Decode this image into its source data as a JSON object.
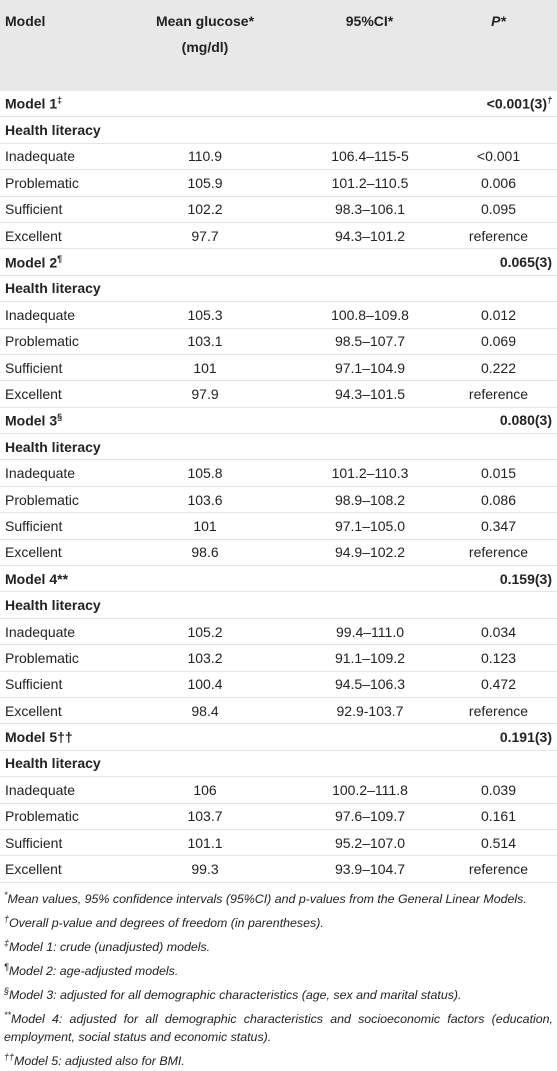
{
  "table": {
    "header": [
      "Model",
      "Mean glucose* (mg/dl)",
      "95%CI*",
      "P*"
    ],
    "models": [
      {
        "label": "Model 1",
        "sup": "‡",
        "p": "<0.001(3)",
        "p_sup": "†",
        "subheading": "Health literacy",
        "rows": [
          [
            "Inadequate",
            "110.9",
            "106.4–115-5",
            "<0.001"
          ],
          [
            "Problematic",
            "105.9",
            "101.2–110.5",
            "0.006"
          ],
          [
            "Sufficient",
            "102.2",
            "98.3–106.1",
            "0.095"
          ],
          [
            "Excellent",
            "97.7",
            "94.3–101.2",
            "reference"
          ]
        ]
      },
      {
        "label": "Model 2",
        "sup": "¶",
        "p": "0.065(3)",
        "subheading": "Health literacy",
        "rows": [
          [
            "Inadequate",
            "105.3",
            "100.8–109.8",
            "0.012"
          ],
          [
            "Problematic",
            "103.1",
            "98.5–107.7",
            "0.069"
          ],
          [
            "Sufficient",
            "101",
            "97.1–104.9",
            "0.222"
          ],
          [
            "Excellent",
            "97.9",
            "94.3–101.5",
            "reference"
          ]
        ]
      },
      {
        "label": "Model 3",
        "sup": "§",
        "p": "0.080(3)",
        "subheading": "Health literacy",
        "rows": [
          [
            "Inadequate",
            "105.8",
            "101.2–110.3",
            "0.015"
          ],
          [
            "Problematic",
            "103.6",
            "98.9–108.2",
            "0.086"
          ],
          [
            "Sufficient",
            "101",
            "97.1–105.0",
            "0.347"
          ],
          [
            "Excellent",
            "98.6",
            "94.9–102.2",
            "reference"
          ]
        ]
      },
      {
        "label": "Model 4**",
        "p": "0.159(3)",
        "subheading": "Health literacy",
        "rows": [
          [
            "Inadequate",
            "105.2",
            "99.4–111.0",
            "0.034"
          ],
          [
            "Problematic",
            "103.2",
            "91.1–109.2",
            "0.123"
          ],
          [
            "Sufficient",
            "100.4",
            "94.5–106.3",
            "0.472"
          ],
          [
            "Excellent",
            "98.4",
            "92.9-103.7",
            "reference"
          ]
        ]
      },
      {
        "label": "Model 5††",
        "p": "0.191(3)",
        "subheading": "Health literacy",
        "rows": [
          [
            "Inadequate",
            "106",
            "100.2–111.8",
            "0.039"
          ],
          [
            "Problematic",
            "103.7",
            "97.6–109.7",
            "0.161"
          ],
          [
            "Sufficient",
            "101.1",
            "95.2–107.0",
            "0.514"
          ],
          [
            "Excellent",
            "99.3",
            "93.9–104.7",
            "reference"
          ]
        ]
      }
    ]
  },
  "footnotes": [
    {
      "symbol": "*",
      "text": "Mean values, 95% confidence intervals (95%CI) and p-values from the General Linear Models."
    },
    {
      "symbol": "†",
      "text": "Overall p-value and degrees of freedom (in parentheses)."
    },
    {
      "symbol": "‡",
      "text": "Model 1: crude (unadjusted) models."
    },
    {
      "symbol": "¶",
      "text": "Model 2: age-adjusted models."
    },
    {
      "symbol": "§",
      "text": "Model 3: adjusted for all demographic characteristics (age, sex and marital status)."
    },
    {
      "symbol": "**",
      "text": "Model 4: adjusted for all demographic characteristics and socioeconomic factors (education, employment, social status and economic status)."
    },
    {
      "symbol": "††",
      "text": "Model 5: adjusted also for BMI."
    }
  ]
}
